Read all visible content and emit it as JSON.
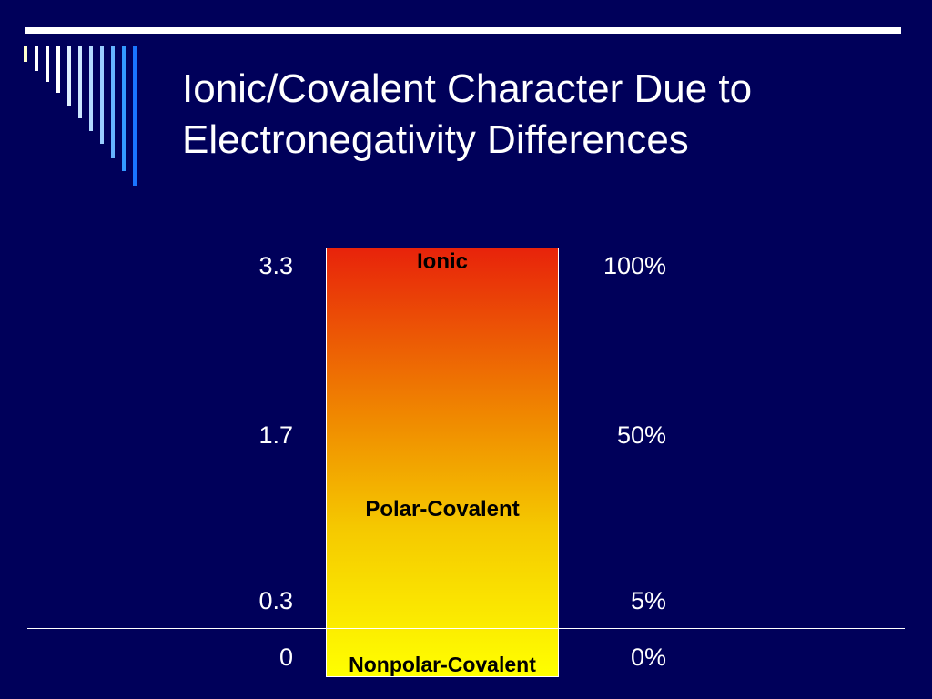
{
  "slide": {
    "background_color": "#00005a",
    "title": "Ionic/Covalent Character Due to\nElectronegativity Differences"
  },
  "scale": {
    "gradient_top_color": "#e8230a",
    "gradient_bottom_color": "#ffff00",
    "left_ticks": [
      {
        "label": "3.3",
        "value": 3.3
      },
      {
        "label": "1.7",
        "value": 1.7
      },
      {
        "label": "0.3",
        "value": 0.3
      },
      {
        "label": "0",
        "value": 0
      }
    ],
    "right_ticks": [
      {
        "label": "100%",
        "value": 100
      },
      {
        "label": "50%",
        "value": 50
      },
      {
        "label": "5%",
        "value": 5
      },
      {
        "label": "0%",
        "value": 0
      }
    ],
    "regions": {
      "ionic": "Ionic",
      "polar": "Polar-Covalent",
      "nonpolar": "Nonpolar-Covalent"
    }
  },
  "decoration": {
    "stripe_colors": [
      "#ffffcc",
      "#ffffff",
      "#ffffff",
      "#ffffff",
      "#e0f0ff",
      "#cce6ff",
      "#b3d9ff",
      "#99ccff",
      "#66b3ff",
      "#3399ff",
      "#1a75ff"
    ]
  }
}
